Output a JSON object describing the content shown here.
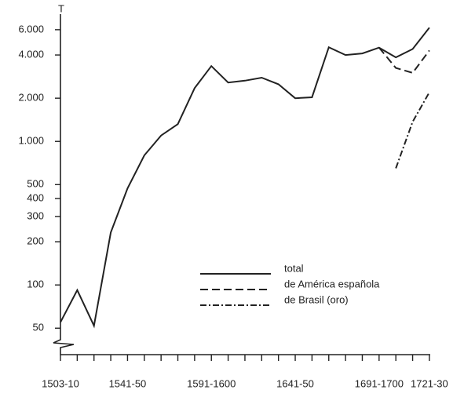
{
  "chart_data": {
    "type": "line",
    "y_label": "T",
    "log_scale": true,
    "categories": [
      "1503-10",
      null,
      null,
      null,
      "1541-50",
      null,
      null,
      null,
      null,
      "1591-1600",
      null,
      null,
      null,
      null,
      "1641-50",
      null,
      null,
      null,
      null,
      "1691-1700",
      null,
      null,
      "1721-30"
    ],
    "series": [
      {
        "name": "total",
        "color": "#222",
        "dash": "solid",
        "values": [
          55,
          92,
          52,
          232,
          470,
          800,
          1100,
          1320,
          2350,
          3350,
          2570,
          2650,
          2780,
          2500,
          2000,
          2030,
          4530,
          4000,
          4100,
          4500,
          3850,
          4400,
          6200
        ]
      },
      {
        "name": "de América española",
        "color": "#222",
        "dash": "dashed",
        "values": [
          null,
          null,
          null,
          null,
          null,
          null,
          null,
          null,
          null,
          null,
          null,
          null,
          null,
          null,
          null,
          null,
          null,
          null,
          null,
          4500,
          3250,
          3000,
          4300
        ]
      },
      {
        "name": "de Brasil (oro)",
        "color": "#222",
        "dash": "dashdot",
        "values": [
          null,
          null,
          null,
          null,
          null,
          null,
          null,
          null,
          null,
          null,
          null,
          null,
          null,
          null,
          null,
          null,
          null,
          null,
          null,
          null,
          650,
          1370,
          2200
        ]
      }
    ],
    "ylim": [
      40,
      8000
    ],
    "yticks": [
      50,
      100,
      200,
      300,
      400,
      500,
      {
        "value": 1000,
        "label": "1.000"
      },
      {
        "value": 2000,
        "label": "2.000"
      },
      {
        "value": 4000,
        "label": "4.000"
      },
      {
        "value": 6000,
        "label": "6.000"
      }
    ],
    "grid": false
  }
}
